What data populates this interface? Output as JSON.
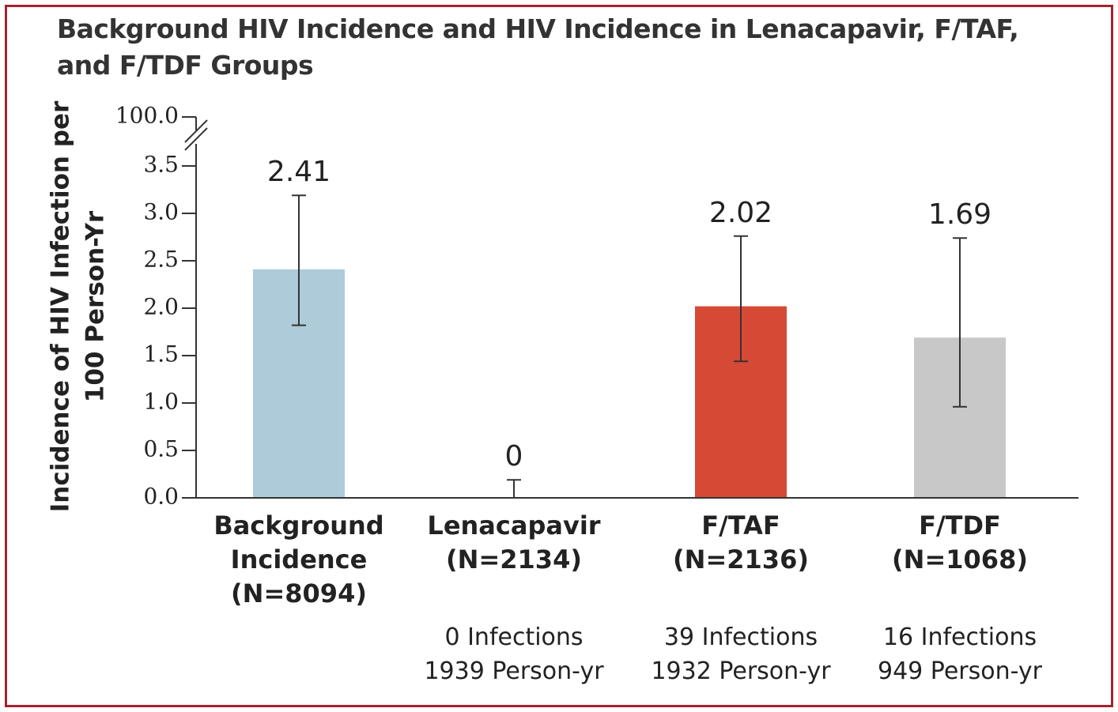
{
  "chart_data": {
    "type": "bar",
    "title": "Background HIV Incidence and HIV Incidence in Lenacapavir, F/TAF, and F/TDF Groups",
    "ylabel": [
      "Incidence of HIV Infection per",
      "100 Person-Yr"
    ],
    "xlabel": "",
    "ylim": [
      0,
      3.5
    ],
    "axis_break_label": "100.0",
    "yticks": [
      "0.0",
      "0.5",
      "1.0",
      "1.5",
      "2.0",
      "2.5",
      "3.0",
      "3.5"
    ],
    "grid": false,
    "categories": [
      {
        "label": [
          "Background",
          "Incidence",
          "(N=8094)"
        ],
        "value": 2.41,
        "value_label": "2.41",
        "ci": [
          1.82,
          3.19
        ],
        "color": "#aecbd9",
        "info": []
      },
      {
        "label": [
          "Lenacapavir",
          "(N=2134)"
        ],
        "value": 0,
        "value_label": "0",
        "ci": [
          0,
          0.19
        ],
        "color": "#aecbd9",
        "info": [
          "0 Infections",
          "1939 Person-yr"
        ]
      },
      {
        "label": [
          "F/TAF",
          "(N=2136)"
        ],
        "value": 2.02,
        "value_label": "2.02",
        "ci": [
          1.44,
          2.76
        ],
        "color": "#d64a35",
        "info": [
          "39 Infections",
          "1932 Person-yr"
        ]
      },
      {
        "label": [
          "F/TDF",
          "(N=1068)"
        ],
        "value": 1.69,
        "value_label": "1.69",
        "ci": [
          0.96,
          2.74
        ],
        "color": "#c8c8c8",
        "info": [
          "16 Infections",
          "949 Person-yr"
        ]
      }
    ]
  },
  "colors": {
    "frame": "#a3232d",
    "axis": "#333333",
    "text": "#222222"
  }
}
